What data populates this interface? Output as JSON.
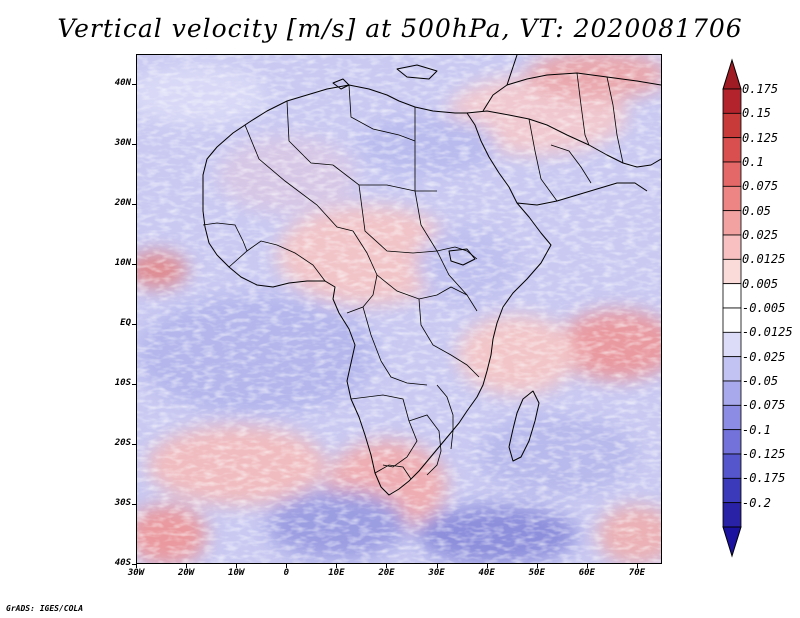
{
  "title": "Vertical velocity [m/s] at 500hPa, VT: 2020081706",
  "credit": "GrADS: IGES/COLA",
  "map": {
    "lon_range": [
      -30,
      75
    ],
    "lat_range": [
      -40,
      45
    ],
    "lat_ticks": [
      {
        "label": "40N",
        "value": 40
      },
      {
        "label": "30N",
        "value": 30
      },
      {
        "label": "20N",
        "value": 20
      },
      {
        "label": "10N",
        "value": 10
      },
      {
        "label": "EQ",
        "value": 0
      },
      {
        "label": "10S",
        "value": -10
      },
      {
        "label": "20S",
        "value": -20
      },
      {
        "label": "30S",
        "value": -30
      },
      {
        "label": "40S",
        "value": -40
      }
    ],
    "lon_ticks": [
      {
        "label": "30W",
        "value": -30
      },
      {
        "label": "20W",
        "value": -20
      },
      {
        "label": "10W",
        "value": -10
      },
      {
        "label": "0",
        "value": 0
      },
      {
        "label": "10E",
        "value": 10
      },
      {
        "label": "20E",
        "value": 20
      },
      {
        "label": "30E",
        "value": 30
      },
      {
        "label": "40E",
        "value": 40
      },
      {
        "label": "50E",
        "value": 50
      },
      {
        "label": "60E",
        "value": 60
      },
      {
        "label": "70E",
        "value": 70
      }
    ]
  },
  "colorbar": {
    "levels": [
      {
        "label": "0.175",
        "color": "#b3232c"
      },
      {
        "label": "0.15",
        "color": "#c83a3a"
      },
      {
        "label": "0.125",
        "color": "#d94f4f"
      },
      {
        "label": "0.1",
        "color": "#e56868"
      },
      {
        "label": "0.075",
        "color": "#ee8585"
      },
      {
        "label": "0.05",
        "color": "#f3a2a2"
      },
      {
        "label": "0.025",
        "color": "#f8c0c0"
      },
      {
        "label": "0.0125",
        "color": "#fbdada"
      },
      {
        "label": "0.005",
        "color": "#ffffff"
      },
      {
        "label": "-0.005",
        "color": "#ffffff"
      },
      {
        "label": "-0.0125",
        "color": "#dcdcf8"
      },
      {
        "label": "-0.025",
        "color": "#c3c3f3"
      },
      {
        "label": "-0.05",
        "color": "#a8a8ec"
      },
      {
        "label": "-0.075",
        "color": "#8c8ce4"
      },
      {
        "label": "-0.1",
        "color": "#7272da"
      },
      {
        "label": "-0.125",
        "color": "#5656cc"
      },
      {
        "label": "-0.175",
        "color": "#3a3aba"
      },
      {
        "label": "-0.2",
        "color": "#2a22a6"
      }
    ],
    "top_arrow_color": "#a01c24",
    "bottom_arrow_color": "#1c12a0"
  }
}
